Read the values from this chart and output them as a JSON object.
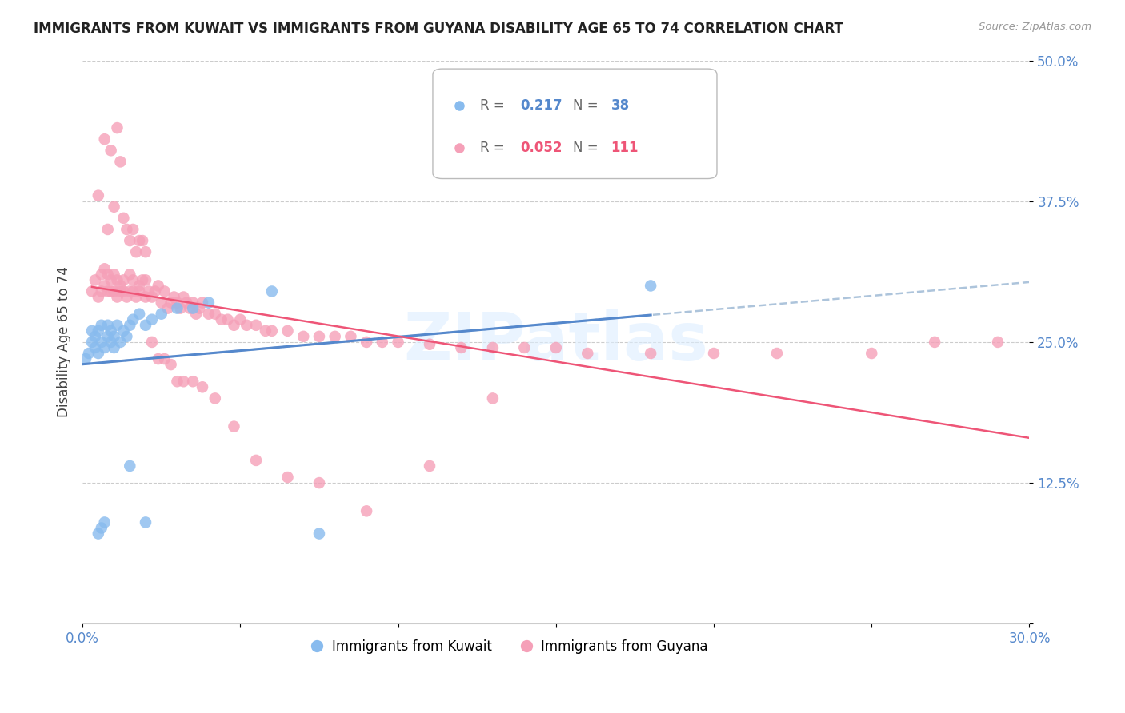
{
  "title": "IMMIGRANTS FROM KUWAIT VS IMMIGRANTS FROM GUYANA DISABILITY AGE 65 TO 74 CORRELATION CHART",
  "source": "Source: ZipAtlas.com",
  "xlabel": "",
  "ylabel": "Disability Age 65 to 74",
  "xlim": [
    0.0,
    0.3
  ],
  "ylim": [
    0.0,
    0.5
  ],
  "xticks": [
    0.0,
    0.05,
    0.1,
    0.15,
    0.2,
    0.25,
    0.3
  ],
  "xticklabels_left": [
    "0.0%"
  ],
  "xticklabels_right": [
    "30.0%"
  ],
  "yticks": [
    0.0,
    0.125,
    0.25,
    0.375,
    0.5
  ],
  "yticklabels": [
    "",
    "12.5%",
    "25.0%",
    "37.5%",
    "50.0%"
  ],
  "grid_color": "#cccccc",
  "background_color": "#ffffff",
  "kuwait_color": "#88bbee",
  "guyana_color": "#f5a0b8",
  "kuwait_line_color": "#5588cc",
  "guyana_line_color": "#ee5577",
  "kuwait_dashed_color": "#8aabcc",
  "kuwait_R": "0.217",
  "kuwait_N": "38",
  "guyana_R": "0.052",
  "guyana_N": "111",
  "watermark": "ZIPatlas",
  "legend_label_kuwait": "Immigrants from Kuwait",
  "legend_label_guyana": "Immigrants from Guyana",
  "kuwait_x": [
    0.001,
    0.002,
    0.003,
    0.003,
    0.004,
    0.004,
    0.005,
    0.005,
    0.006,
    0.006,
    0.007,
    0.008,
    0.008,
    0.009,
    0.009,
    0.01,
    0.01,
    0.011,
    0.012,
    0.013,
    0.014,
    0.015,
    0.016,
    0.018,
    0.02,
    0.022,
    0.025,
    0.03,
    0.035,
    0.04,
    0.005,
    0.006,
    0.007,
    0.015,
    0.02,
    0.06,
    0.075,
    0.18
  ],
  "kuwait_y": [
    0.235,
    0.24,
    0.25,
    0.26,
    0.245,
    0.255,
    0.24,
    0.26,
    0.25,
    0.265,
    0.245,
    0.255,
    0.265,
    0.25,
    0.26,
    0.245,
    0.255,
    0.265,
    0.25,
    0.26,
    0.255,
    0.265,
    0.27,
    0.275,
    0.265,
    0.27,
    0.275,
    0.28,
    0.28,
    0.285,
    0.08,
    0.085,
    0.09,
    0.14,
    0.09,
    0.295,
    0.08,
    0.3
  ],
  "guyana_x": [
    0.003,
    0.004,
    0.005,
    0.006,
    0.006,
    0.007,
    0.007,
    0.008,
    0.008,
    0.009,
    0.009,
    0.01,
    0.01,
    0.011,
    0.011,
    0.012,
    0.012,
    0.013,
    0.013,
    0.014,
    0.015,
    0.015,
    0.016,
    0.016,
    0.017,
    0.018,
    0.018,
    0.019,
    0.02,
    0.02,
    0.021,
    0.022,
    0.023,
    0.024,
    0.025,
    0.026,
    0.027,
    0.028,
    0.029,
    0.03,
    0.031,
    0.032,
    0.033,
    0.034,
    0.035,
    0.036,
    0.037,
    0.038,
    0.04,
    0.042,
    0.044,
    0.046,
    0.048,
    0.05,
    0.052,
    0.055,
    0.058,
    0.06,
    0.065,
    0.07,
    0.075,
    0.08,
    0.085,
    0.09,
    0.095,
    0.1,
    0.11,
    0.12,
    0.13,
    0.14,
    0.15,
    0.16,
    0.18,
    0.2,
    0.22,
    0.25,
    0.27,
    0.29,
    0.005,
    0.007,
    0.008,
    0.009,
    0.01,
    0.011,
    0.012,
    0.013,
    0.014,
    0.015,
    0.016,
    0.017,
    0.018,
    0.019,
    0.02,
    0.022,
    0.024,
    0.026,
    0.028,
    0.03,
    0.032,
    0.035,
    0.038,
    0.042,
    0.048,
    0.055,
    0.065,
    0.075,
    0.09,
    0.11,
    0.13
  ],
  "guyana_y": [
    0.295,
    0.305,
    0.29,
    0.31,
    0.295,
    0.3,
    0.315,
    0.295,
    0.31,
    0.295,
    0.305,
    0.295,
    0.31,
    0.29,
    0.305,
    0.295,
    0.3,
    0.295,
    0.305,
    0.29,
    0.295,
    0.31,
    0.295,
    0.305,
    0.29,
    0.3,
    0.295,
    0.305,
    0.29,
    0.305,
    0.295,
    0.29,
    0.295,
    0.3,
    0.285,
    0.295,
    0.28,
    0.285,
    0.29,
    0.285,
    0.28,
    0.29,
    0.285,
    0.28,
    0.285,
    0.275,
    0.28,
    0.285,
    0.275,
    0.275,
    0.27,
    0.27,
    0.265,
    0.27,
    0.265,
    0.265,
    0.26,
    0.26,
    0.26,
    0.255,
    0.255,
    0.255,
    0.255,
    0.25,
    0.25,
    0.25,
    0.248,
    0.245,
    0.245,
    0.245,
    0.245,
    0.24,
    0.24,
    0.24,
    0.24,
    0.24,
    0.25,
    0.25,
    0.38,
    0.43,
    0.35,
    0.42,
    0.37,
    0.44,
    0.41,
    0.36,
    0.35,
    0.34,
    0.35,
    0.33,
    0.34,
    0.34,
    0.33,
    0.25,
    0.235,
    0.235,
    0.23,
    0.215,
    0.215,
    0.215,
    0.21,
    0.2,
    0.175,
    0.145,
    0.13,
    0.125,
    0.1,
    0.14,
    0.2
  ]
}
